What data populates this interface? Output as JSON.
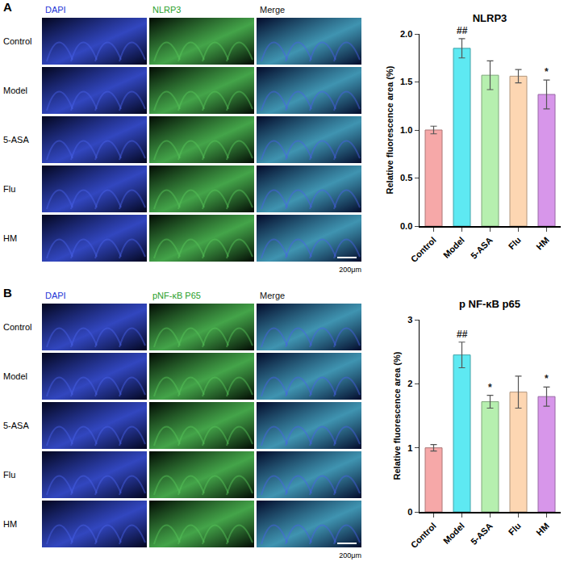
{
  "figure": {
    "panels": [
      {
        "letter": "A",
        "columns": [
          "DAPI",
          "NLRP3",
          "Merge"
        ],
        "rows": [
          "Control",
          "Model",
          "5-ASA",
          "Flu",
          "HM"
        ],
        "scale_bar": "200μm"
      },
      {
        "letter": "B",
        "columns": [
          "DAPI",
          "pNF-κB P65",
          "Merge"
        ],
        "rows": [
          "Control",
          "Model",
          "5-ASA",
          "Flu",
          "HM"
        ],
        "scale_bar": "200μm"
      }
    ]
  },
  "chart_data": [
    {
      "type": "bar",
      "title": "NLRP3",
      "y_label": "Relative fluorescence area (%)",
      "categories": [
        "Control",
        "Model",
        "5-ASA",
        "Flu",
        "HM"
      ],
      "values": [
        1.0,
        1.85,
        1.57,
        1.56,
        1.37
      ],
      "errors": [
        0.04,
        0.1,
        0.15,
        0.07,
        0.15
      ],
      "colors": [
        "#f6a8a8",
        "#5ee9f2",
        "#b6efaf",
        "#fdd6b2",
        "#d796ea"
      ],
      "ylim": [
        0,
        2.0
      ],
      "yticks": [
        {
          "value": 0,
          "label": "0.0"
        },
        {
          "value": 0.5,
          "label": "0.5"
        },
        {
          "value": 1.0,
          "label": "1.0"
        },
        {
          "value": 1.5,
          "label": "1.5"
        },
        {
          "value": 2.0,
          "label": "2.0"
        }
      ],
      "grid": false,
      "annotations": [
        {
          "category": "Model",
          "text": "##"
        },
        {
          "category": "HM",
          "text": "*"
        }
      ]
    },
    {
      "type": "bar",
      "title": "p NF-κB p65",
      "y_label": "Relative fluorescence area (%)",
      "categories": [
        "Control",
        "Model",
        "5-ASA",
        "Flu",
        "HM"
      ],
      "values": [
        1.0,
        2.45,
        1.72,
        1.87,
        1.8
      ],
      "errors": [
        0.05,
        0.2,
        0.1,
        0.25,
        0.15
      ],
      "colors": [
        "#f6a8a8",
        "#5ee9f2",
        "#b6efaf",
        "#fdd6b2",
        "#d796ea"
      ],
      "ylim": [
        0,
        3
      ],
      "yticks": [
        0,
        1,
        2,
        3
      ],
      "grid": false,
      "annotations": [
        {
          "category": "Model",
          "text": "##"
        },
        {
          "category": "5-ASA",
          "text": "*"
        },
        {
          "category": "HM",
          "text": "*"
        }
      ]
    }
  ]
}
